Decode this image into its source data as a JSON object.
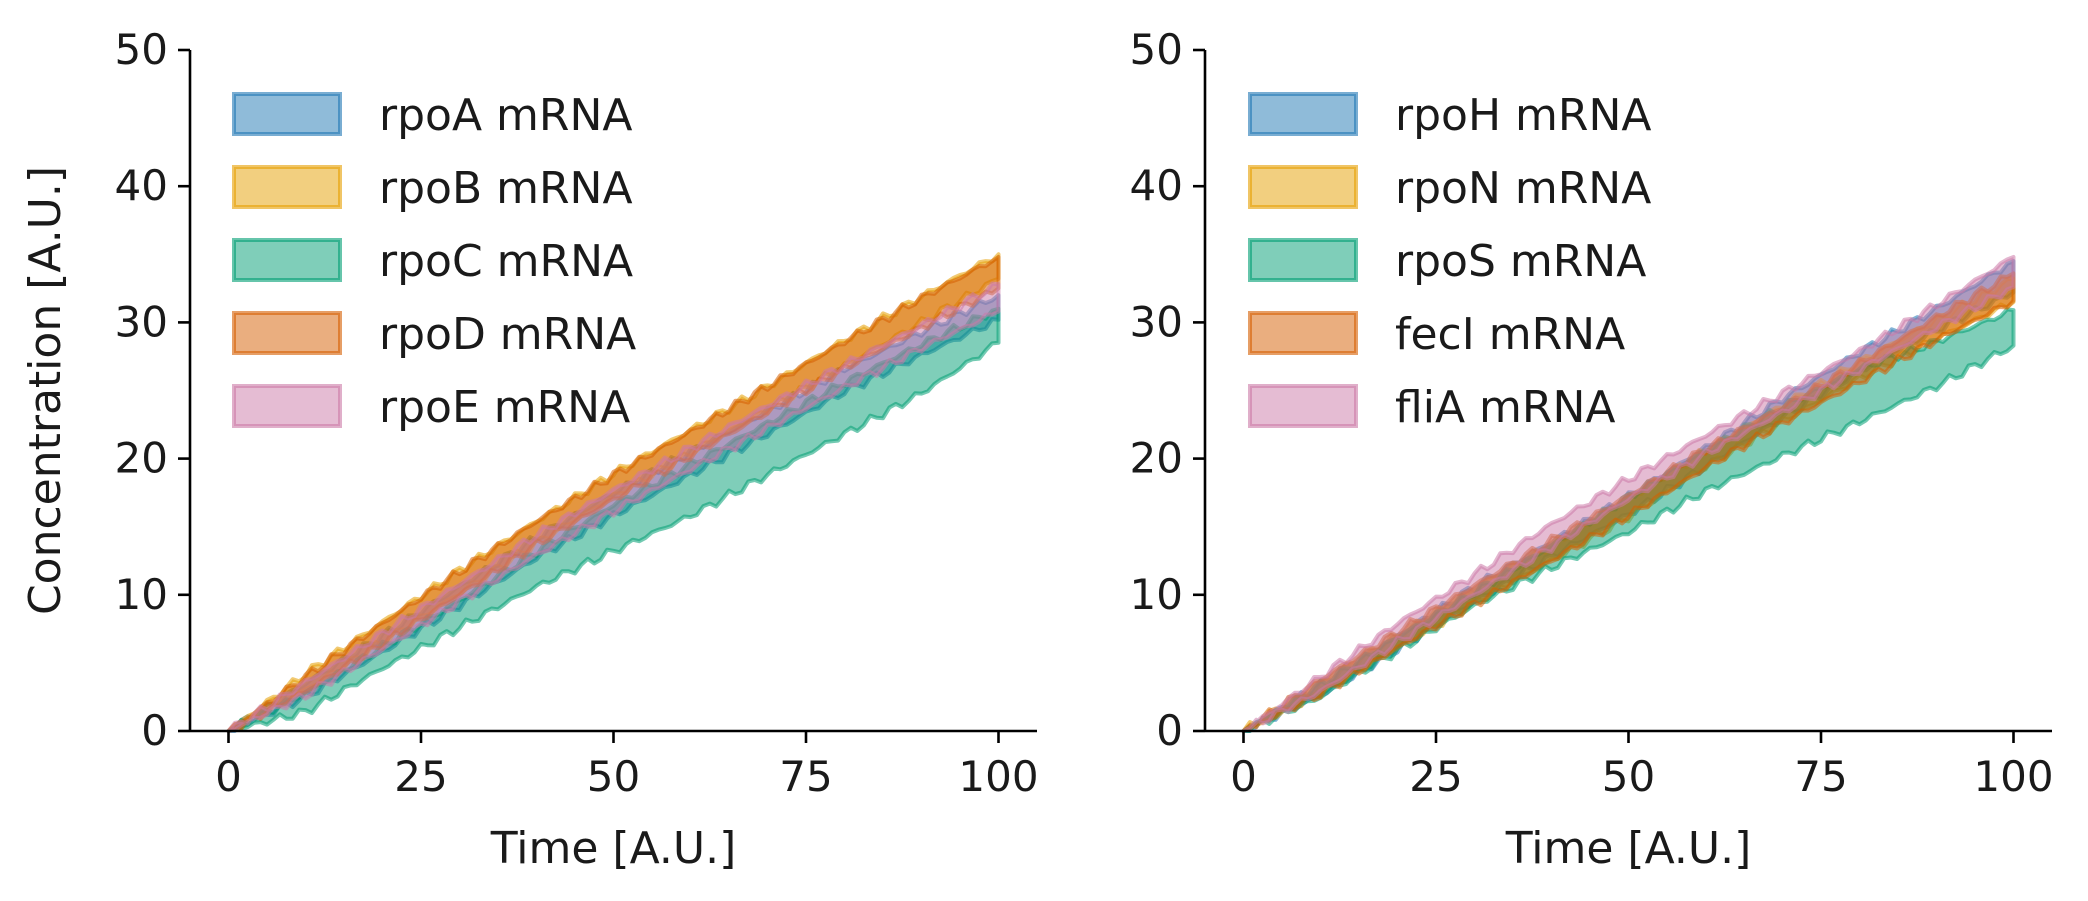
{
  "chart_data": [
    {
      "type": "area",
      "xlabel": "Time [A.U.]",
      "ylabel": "Concentration [A.U.]",
      "xlim": [
        -5,
        105
      ],
      "ylim": [
        0,
        50
      ],
      "xticks": [
        "0",
        "25",
        "50",
        "75",
        "100"
      ],
      "yticks": [
        "0",
        "10",
        "20",
        "30",
        "40",
        "50"
      ],
      "grid": false,
      "legend_position": "top-left",
      "x": [
        0,
        10,
        20,
        30,
        40,
        50,
        60,
        70,
        80,
        90,
        100
      ],
      "series": [
        {
          "name": "rpoA mRNA",
          "color": "#1f77b4",
          "lower": [
            0,
            2.5,
            5.8,
            9.2,
            12.7,
            15.8,
            18.8,
            21.8,
            24.9,
            27.6,
            30.2
          ],
          "upper": [
            0,
            3.5,
            7.0,
            10.6,
            14.2,
            17.5,
            20.5,
            23.5,
            26.6,
            29.3,
            32.0
          ]
        },
        {
          "name": "rpoB mRNA",
          "color": "#e69f00",
          "lower": [
            0,
            3.0,
            6.5,
            10.1,
            13.8,
            17.2,
            20.4,
            23.6,
            26.8,
            30.0,
            33.2
          ],
          "upper": [
            0,
            4.2,
            8.0,
            11.8,
            15.4,
            18.9,
            22.1,
            25.3,
            28.7,
            31.9,
            35.0
          ]
        },
        {
          "name": "rpoC mRNA",
          "color": "#009e73",
          "lower": [
            0,
            1.4,
            4.6,
            7.6,
            10.6,
            13.2,
            15.8,
            18.8,
            21.8,
            24.8,
            28.5
          ],
          "upper": [
            0,
            2.8,
            6.2,
            9.6,
            13.2,
            16.6,
            19.6,
            22.6,
            25.6,
            28.4,
            31.0
          ]
        },
        {
          "name": "rpoD mRNA",
          "color": "#d55e00",
          "lower": [
            0,
            2.9,
            6.4,
            10.0,
            13.7,
            17.0,
            20.2,
            23.4,
            26.6,
            29.6,
            32.5
          ],
          "upper": [
            0,
            4.0,
            7.9,
            11.7,
            15.4,
            18.8,
            22.0,
            25.3,
            28.6,
            31.8,
            34.8
          ]
        },
        {
          "name": "rpoE mRNA",
          "color": "#cc79a7",
          "lower": [
            0,
            2.6,
            6.0,
            9.5,
            12.9,
            16.1,
            19.2,
            22.2,
            25.2,
            28.1,
            30.8
          ],
          "upper": [
            0,
            3.6,
            7.2,
            10.8,
            14.4,
            17.7,
            20.8,
            23.9,
            26.9,
            29.8,
            32.8
          ]
        }
      ]
    },
    {
      "type": "area",
      "xlabel": "Time [A.U.]",
      "ylabel": "",
      "xlim": [
        -5,
        105
      ],
      "ylim": [
        0,
        50
      ],
      "xticks": [
        "0",
        "25",
        "50",
        "75",
        "100"
      ],
      "yticks": [
        "0",
        "10",
        "20",
        "30",
        "40",
        "50"
      ],
      "grid": false,
      "legend_position": "top-left",
      "x": [
        0,
        10,
        20,
        30,
        40,
        50,
        60,
        70,
        80,
        90,
        100
      ],
      "series": [
        {
          "name": "rpoH mRNA",
          "color": "#1f77b4",
          "lower": [
            0,
            2.6,
            6.0,
            9.5,
            12.8,
            15.9,
            19.4,
            23.0,
            26.4,
            29.4,
            32.2
          ],
          "upper": [
            0,
            3.4,
            7.0,
            10.6,
            13.9,
            17.2,
            20.8,
            24.4,
            27.8,
            31.0,
            34.5
          ]
        },
        {
          "name": "rpoN mRNA",
          "color": "#e69f00",
          "lower": [
            0,
            2.8,
            6.1,
            9.4,
            12.5,
            15.7,
            19.4,
            22.7,
            25.9,
            28.8,
            31.5
          ],
          "upper": [
            0,
            3.6,
            7.0,
            10.5,
            13.7,
            17.0,
            20.6,
            23.9,
            27.1,
            30.2,
            33.2
          ]
        },
        {
          "name": "rpoS mRNA",
          "color": "#009e73",
          "lower": [
            0,
            2.5,
            5.9,
            9.2,
            12.0,
            14.6,
            17.6,
            20.2,
            22.7,
            25.3,
            28.3
          ],
          "upper": [
            0,
            3.4,
            6.9,
            10.2,
            13.6,
            17.2,
            20.6,
            23.8,
            26.6,
            28.6,
            30.9
          ]
        },
        {
          "name": "fecI mRNA",
          "color": "#d55e00",
          "lower": [
            0,
            2.7,
            6.1,
            9.3,
            12.5,
            15.8,
            19.3,
            22.6,
            25.6,
            28.7,
            31.6
          ],
          "upper": [
            0,
            3.8,
            7.3,
            10.7,
            14.0,
            17.3,
            20.7,
            23.8,
            27.0,
            30.4,
            33.6
          ]
        },
        {
          "name": "fliA mRNA",
          "color": "#cc79a7",
          "lower": [
            0,
            2.9,
            6.5,
            10.0,
            13.5,
            17.0,
            20.3,
            23.4,
            26.5,
            29.6,
            32.6
          ],
          "upper": [
            0,
            4.0,
            7.9,
            11.5,
            15.2,
            18.5,
            21.7,
            24.8,
            27.9,
            31.3,
            34.8
          ]
        }
      ]
    }
  ]
}
